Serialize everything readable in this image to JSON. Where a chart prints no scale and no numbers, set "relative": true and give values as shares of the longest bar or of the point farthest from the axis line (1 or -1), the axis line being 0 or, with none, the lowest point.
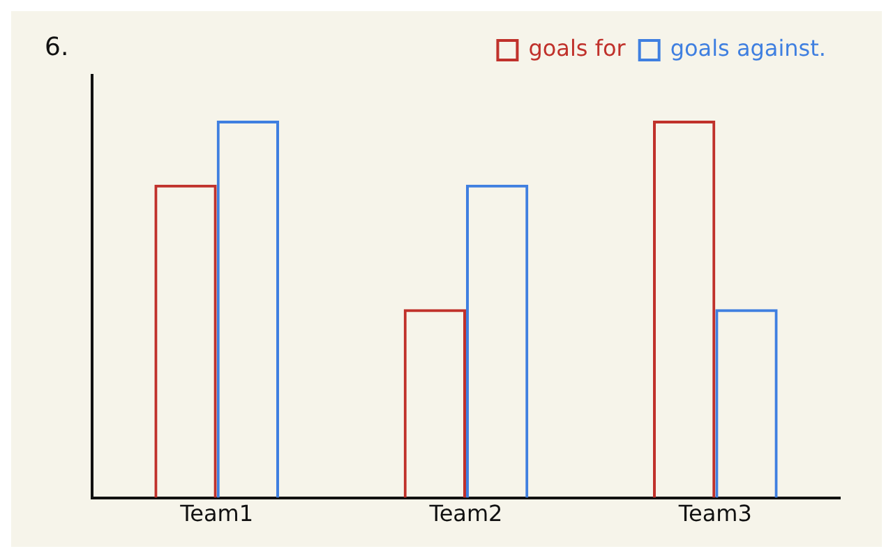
{
  "chart_data": {
    "type": "bar",
    "relative": true,
    "categories": [
      "Team1",
      "Team2",
      "Team3"
    ],
    "series": [
      {
        "name": "goals for",
        "color": "#c0312b",
        "values": [
          0.83,
          0.5,
          1.0
        ]
      },
      {
        "name": "goals against.",
        "color": "#3f7fe0",
        "values": [
          1.0,
          0.83,
          0.5
        ]
      }
    ],
    "annotations": [
      "6."
    ],
    "legend": "top right",
    "grid": false
  }
}
